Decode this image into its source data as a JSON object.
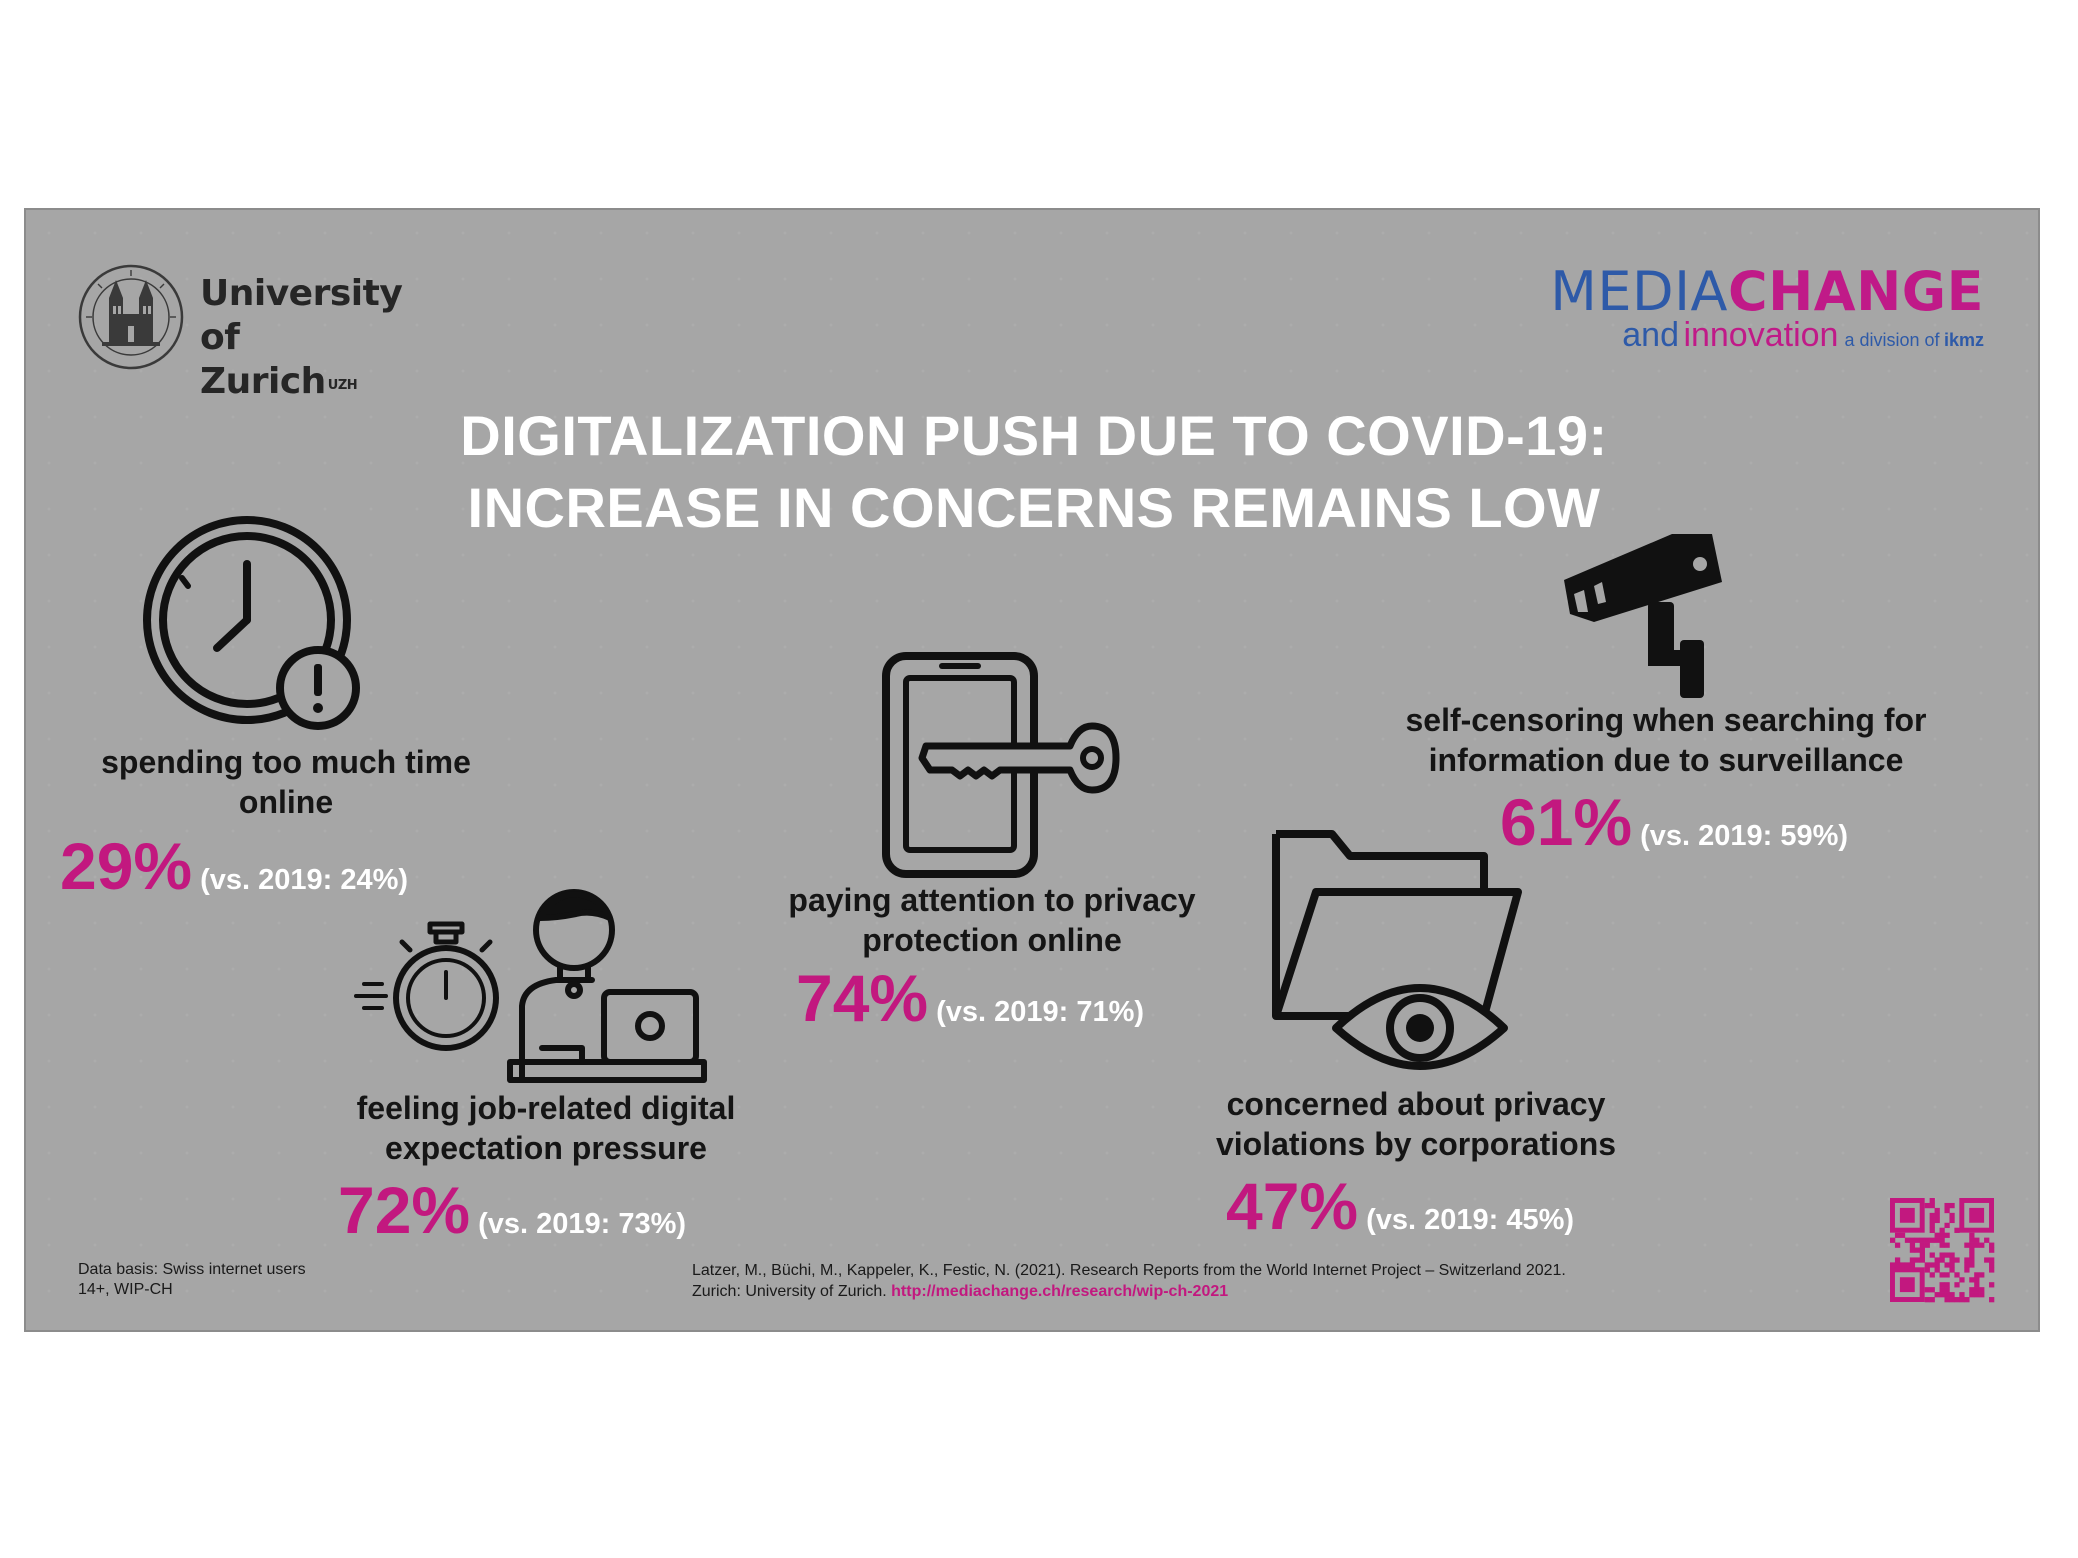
{
  "logos": {
    "uzh_line1": "University of",
    "uzh_line2": "Zurich",
    "uzh_sup": "UZH",
    "mc_media": "MEDIA",
    "mc_change": "CHANGE",
    "mc_and": "and",
    "mc_innovation": "innovation",
    "mc_division": "a division of",
    "mc_ikmz": "ikmz"
  },
  "title": {
    "line1": "DIGITALIZATION PUSH DUE TO COVID-19:",
    "line2": "INCREASE IN CONCERNS REMAINS LOW"
  },
  "items": [
    {
      "label_line1": "spending too much time",
      "label_line2": "online",
      "pct": "29%",
      "vs": "(vs. 2019: 24%)",
      "icon": "clock-warning-icon",
      "value": 29,
      "value_2019": 24
    },
    {
      "label_line1": "feeling job-related digital",
      "label_line2": "expectation pressure",
      "pct": "72%",
      "vs": "(vs. 2019: 73%)",
      "icon": "stopwatch-laptop-worker-icon",
      "value": 72,
      "value_2019": 73
    },
    {
      "label_line1": "paying attention to privacy",
      "label_line2": "protection online",
      "pct": "74%",
      "vs": "(vs. 2019: 71%)",
      "icon": "phone-key-icon",
      "value": 74,
      "value_2019": 71
    },
    {
      "label_line1": "self-censoring when searching for",
      "label_line2": "information due to surveillance",
      "pct": "61%",
      "vs": "(vs. 2019: 59%)",
      "icon": "surveillance-camera-icon",
      "value": 61,
      "value_2019": 59
    },
    {
      "label_line1": "concerned about privacy",
      "label_line2": "violations by corporations",
      "pct": "47%",
      "vs": "(vs. 2019: 45%)",
      "icon": "folder-eye-icon",
      "value": 47,
      "value_2019": 45
    }
  ],
  "footer": {
    "data_basis_line1": "Data basis: Swiss internet users",
    "data_basis_line2": "14+, WIP-CH",
    "citation_line1": "Latzer, M., Büchi, M., Kappeler, K., Festic, N. (2021). Research Reports from the World Internet Project – Switzerland 2021.",
    "citation_line2": "Zurich: University of Zurich. ",
    "citation_url": "http://mediachange.ch/research/wip-ch-2021"
  },
  "colors": {
    "background": "#a6a6a6",
    "accent_magenta": "#c2187f",
    "brand_blue": "#2e5aa8",
    "title_white": "#ffffff"
  }
}
